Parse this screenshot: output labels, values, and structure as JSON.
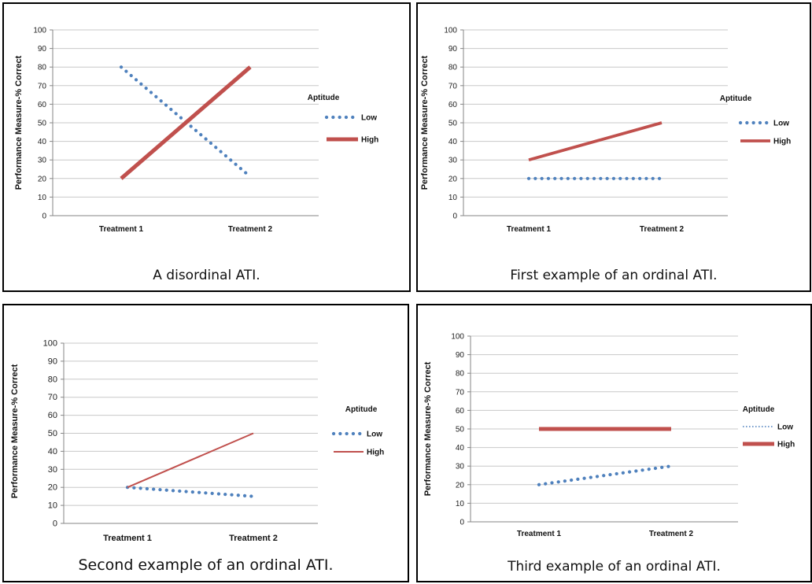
{
  "chart_data": [
    {
      "type": "line",
      "ylabel": "Performance Measure-% Correct",
      "xlabel": "",
      "ylim": [
        0,
        100
      ],
      "yticks": [
        "0",
        "10",
        "20",
        "30",
        "40",
        "50",
        "60",
        "70",
        "80",
        "90",
        "100"
      ],
      "categories": [
        "Treatment 1",
        "Treatment 2"
      ],
      "legend_title": "Aptitude",
      "legend_position": "right",
      "grid": true,
      "series": [
        {
          "name": "Low",
          "values": [
            80,
            21
          ],
          "style": "dotted-round",
          "color": "#4F81BD"
        },
        {
          "name": "High",
          "values": [
            20,
            80
          ],
          "style": "thick-solid",
          "color": "#C0504D"
        }
      ],
      "caption": "A disordinal ATI."
    },
    {
      "type": "line",
      "ylabel": "Performance Measure-% Correct",
      "xlabel": "",
      "ylim": [
        0,
        100
      ],
      "yticks": [
        "0",
        "10",
        "20",
        "30",
        "40",
        "50",
        "60",
        "70",
        "80",
        "90",
        "100"
      ],
      "categories": [
        "Treatment 1",
        "Treatment 2"
      ],
      "legend_title": "Aptitude",
      "legend_position": "right",
      "grid": true,
      "series": [
        {
          "name": "Low",
          "values": [
            20,
            20
          ],
          "style": "dotted-round",
          "color": "#4F81BD"
        },
        {
          "name": "High",
          "values": [
            30,
            50
          ],
          "style": "medium-solid",
          "color": "#C0504D"
        }
      ],
      "caption": "First example of an ordinal ATI."
    },
    {
      "type": "line",
      "ylabel": "Performance Measure-% Correct",
      "xlabel": "",
      "ylim": [
        0,
        100
      ],
      "yticks": [
        "0",
        "10",
        "20",
        "30",
        "40",
        "50",
        "60",
        "70",
        "80",
        "90",
        "100"
      ],
      "categories": [
        "Treatment  1",
        "Treatment 2"
      ],
      "legend_title": "Aptitude",
      "legend_position": "right",
      "grid": true,
      "series": [
        {
          "name": "Low",
          "values": [
            20,
            15
          ],
          "style": "dotted-round",
          "color": "#4F81BD"
        },
        {
          "name": "High",
          "values": [
            20,
            50
          ],
          "style": "thin-solid",
          "color": "#C0504D"
        }
      ],
      "caption": "Second example of an ordinal ATI."
    },
    {
      "type": "line",
      "ylabel": "Performance Measure-% Correct",
      "xlabel": "",
      "ylim": [
        0,
        100
      ],
      "yticks": [
        "0",
        "10",
        "20",
        "30",
        "40",
        "50",
        "60",
        "70",
        "80",
        "90",
        "100"
      ],
      "categories": [
        "Treatment  1",
        "Treatment 2"
      ],
      "legend_title": "Aptitude",
      "legend_position": "right",
      "grid": true,
      "series": [
        {
          "name": "Low",
          "values": [
            20,
            30
          ],
          "style": "dotted-round",
          "color": "#4F81BD",
          "legend_style": "fine-dotted"
        },
        {
          "name": "High",
          "values": [
            50,
            50
          ],
          "style": "thick-solid",
          "color": "#C0504D"
        }
      ],
      "caption": "Third example of an ordinal ATI."
    }
  ]
}
